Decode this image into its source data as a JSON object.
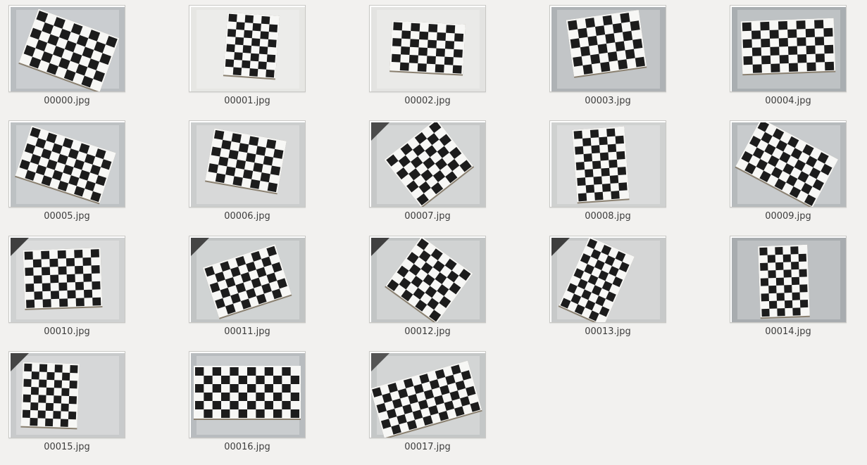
{
  "window": {
    "view": "icon-grid"
  },
  "colors": {
    "background": "#f2f1ef",
    "label_text": "#3c3c3c",
    "tile_border": "#c9c8c5"
  },
  "files": [
    {
      "name": "00000.jpg",
      "icon": "image-thumbnail-checkerboard"
    },
    {
      "name": "00001.jpg",
      "icon": "image-thumbnail-checkerboard"
    },
    {
      "name": "00002.jpg",
      "icon": "image-thumbnail-checkerboard"
    },
    {
      "name": "00003.jpg",
      "icon": "image-thumbnail-checkerboard"
    },
    {
      "name": "00004.jpg",
      "icon": "image-thumbnail-checkerboard"
    },
    {
      "name": "00005.jpg",
      "icon": "image-thumbnail-checkerboard"
    },
    {
      "name": "00006.jpg",
      "icon": "image-thumbnail-checkerboard"
    },
    {
      "name": "00007.jpg",
      "icon": "image-thumbnail-checkerboard"
    },
    {
      "name": "00008.jpg",
      "icon": "image-thumbnail-checkerboard"
    },
    {
      "name": "00009.jpg",
      "icon": "image-thumbnail-checkerboard"
    },
    {
      "name": "00010.jpg",
      "icon": "image-thumbnail-checkerboard"
    },
    {
      "name": "00011.jpg",
      "icon": "image-thumbnail-checkerboard"
    },
    {
      "name": "00012.jpg",
      "icon": "image-thumbnail-checkerboard"
    },
    {
      "name": "00013.jpg",
      "icon": "image-thumbnail-checkerboard"
    },
    {
      "name": "00014.jpg",
      "icon": "image-thumbnail-checkerboard"
    },
    {
      "name": "00015.jpg",
      "icon": "image-thumbnail-checkerboard"
    },
    {
      "name": "00016.jpg",
      "icon": "image-thumbnail-checkerboard"
    },
    {
      "name": "00017.jpg",
      "icon": "image-thumbnail-checkerboard"
    }
  ]
}
